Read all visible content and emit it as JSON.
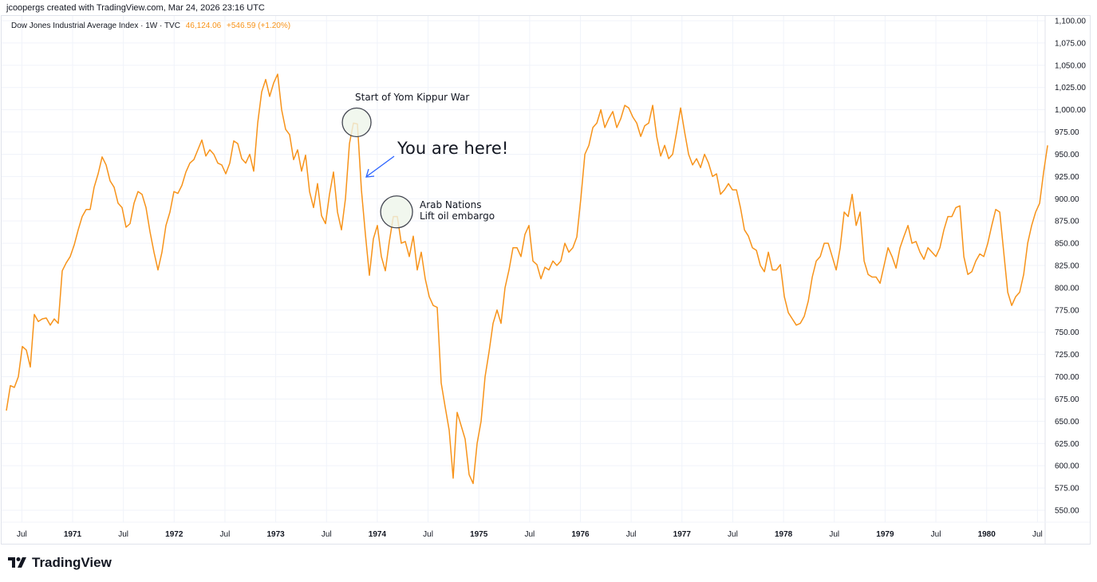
{
  "header": {
    "credit": "jcoopergs created with TradingView.com, Mar 24, 2026 23:16 UTC"
  },
  "legend": {
    "symbol": "Dow Jones Industrial Average Index · 1W · TVC",
    "last": "46,124.06",
    "change": "+546.59 (+1.20%)"
  },
  "footer": {
    "brand": "TradingView"
  },
  "colors": {
    "line": "#f7931a",
    "grid": "#f0f3fa",
    "annotation_fill": "#eef5ea",
    "arrow": "#2962ff"
  },
  "chart_data": {
    "type": "line",
    "title": "Dow Jones Industrial Average Index · 1W · TVC",
    "xlabel": "",
    "ylabel": "",
    "ylim": [
      550,
      1100
    ],
    "y_ticks": [
      "1,100.00",
      "1,075.00",
      "1,050.00",
      "1,025.00",
      "1,000.00",
      "975.00",
      "950.00",
      "925.00",
      "900.00",
      "875.00",
      "850.00",
      "825.00",
      "800.00",
      "775.00",
      "750.00",
      "725.00",
      "700.00",
      "675.00",
      "650.00",
      "625.00",
      "600.00",
      "575.00",
      "550.00"
    ],
    "x_ticks": [
      {
        "t": 1970.5,
        "label": "Jul"
      },
      {
        "t": 1971,
        "label": "1971"
      },
      {
        "t": 1971.5,
        "label": "Jul"
      },
      {
        "t": 1972,
        "label": "1972"
      },
      {
        "t": 1972.5,
        "label": "Jul"
      },
      {
        "t": 1973,
        "label": "1973"
      },
      {
        "t": 1973.5,
        "label": "Jul"
      },
      {
        "t": 1974,
        "label": "1974"
      },
      {
        "t": 1974.5,
        "label": "Jul"
      },
      {
        "t": 1975,
        "label": "1975"
      },
      {
        "t": 1975.5,
        "label": "Jul"
      },
      {
        "t": 1976,
        "label": "1976"
      },
      {
        "t": 1976.5,
        "label": "Jul"
      },
      {
        "t": 1977,
        "label": "1977"
      },
      {
        "t": 1977.5,
        "label": "Jul"
      },
      {
        "t": 1978,
        "label": "1978"
      },
      {
        "t": 1978.5,
        "label": "Jul"
      },
      {
        "t": 1979,
        "label": "1979"
      },
      {
        "t": 1979.5,
        "label": "Jul"
      },
      {
        "t": 1980,
        "label": "1980"
      },
      {
        "t": 1980.5,
        "label": "Jul"
      }
    ],
    "xlim": [
      1970.348,
      1980.6
    ],
    "series": [
      {
        "name": "DJI",
        "start": 1970.348,
        "step_years": 0.03928,
        "values": [
          662,
          690,
          688,
          700,
          734,
          730,
          711,
          770,
          762,
          765,
          766,
          758,
          765,
          760,
          819,
          828,
          835,
          848,
          865,
          880,
          888,
          888,
          913,
          928,
          947,
          938,
          920,
          913,
          895,
          890,
          868,
          872,
          895,
          908,
          905,
          890,
          863,
          840,
          820,
          840,
          870,
          885,
          908,
          906,
          915,
          930,
          940,
          944,
          955,
          966,
          948,
          955,
          950,
          940,
          938,
          928,
          940,
          965,
          962,
          945,
          940,
          950,
          931,
          985,
          1020,
          1034,
          1015,
          1030,
          1040,
          1000,
          978,
          972,
          944,
          955,
          931,
          949,
          908,
          890,
          917,
          881,
          872,
          905,
          930,
          885,
          865,
          900,
          962,
          985,
          984,
          910,
          860,
          814,
          855,
          870,
          835,
          819,
          852,
          880,
          880,
          850,
          852,
          835,
          858,
          820,
          840,
          810,
          790,
          780,
          778,
          693,
          666,
          640,
          586,
          660,
          645,
          630,
          590,
          580,
          625,
          650,
          700,
          728,
          760,
          775,
          760,
          800,
          820,
          845,
          845,
          835,
          860,
          870,
          830,
          826,
          810,
          823,
          820,
          830,
          825,
          830,
          850,
          840,
          845,
          857,
          900,
          950,
          960,
          980,
          985,
          1000,
          980,
          990,
          998,
          980,
          990,
          1005,
          1002,
          992,
          985,
          970,
          982,
          985,
          1005,
          970,
          948,
          960,
          945,
          950,
          975,
          1002,
          975,
          950,
          938,
          945,
          935,
          950,
          940,
          925,
          928,
          905,
          910,
          917,
          910,
          910,
          890,
          865,
          858,
          845,
          842,
          825,
          818,
          840,
          820,
          820,
          826,
          790,
          772,
          765,
          758,
          760,
          768,
          785,
          812,
          830,
          835,
          850,
          850,
          835,
          820,
          845,
          885,
          880,
          905,
          870,
          885,
          830,
          815,
          812,
          812,
          805,
          825,
          845,
          835,
          822,
          845,
          858,
          870,
          850,
          852,
          840,
          832,
          845,
          840,
          835,
          845,
          865,
          880,
          880,
          890,
          892,
          835,
          815,
          818,
          830,
          838,
          835,
          850,
          870,
          888,
          885,
          840,
          795,
          780,
          790,
          795,
          815,
          850,
          870,
          885,
          895,
          930,
          960
        ]
      }
    ],
    "annotations": [
      {
        "type": "circle",
        "t": 1973.797,
        "v": 984,
        "label": "Start of Yom Kippur War"
      },
      {
        "type": "circle",
        "t": 1974.19,
        "v": 887,
        "label_lines": [
          "Arab Nations",
          "Lift oil embargo"
        ]
      },
      {
        "type": "arrow",
        "text": "You are here!"
      }
    ]
  }
}
